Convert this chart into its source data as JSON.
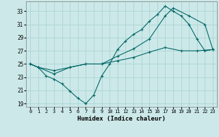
{
  "xlabel": "Humidex (Indice chaleur)",
  "xlim": [
    -0.5,
    23.5
  ],
  "ylim": [
    18.5,
    34.5
  ],
  "yticks": [
    19,
    21,
    23,
    25,
    27,
    29,
    31,
    33
  ],
  "xticks": [
    0,
    1,
    2,
    3,
    4,
    5,
    6,
    7,
    8,
    9,
    10,
    11,
    12,
    13,
    14,
    15,
    16,
    17,
    18,
    19,
    20,
    21,
    22,
    23
  ],
  "bg_color": "#cce8e8",
  "grid_color": "#aad4d4",
  "line_color": "#006666",
  "line1_x": [
    0,
    1,
    2,
    3,
    4,
    5,
    6,
    7,
    8,
    9,
    10,
    11,
    12,
    13,
    14,
    15,
    16,
    17,
    18,
    19,
    20,
    21,
    22,
    23
  ],
  "line1_y": [
    25.0,
    24.5,
    23.2,
    22.7,
    22.0,
    20.9,
    19.8,
    19.0,
    20.3,
    23.2,
    25.0,
    27.2,
    28.5,
    29.5,
    30.2,
    31.5,
    32.5,
    33.8,
    33.0,
    32.3,
    31.0,
    28.8,
    27.0,
    27.2
  ],
  "line2_x": [
    0,
    1,
    3,
    5,
    7,
    9,
    11,
    13,
    15,
    17,
    18,
    20,
    22,
    23
  ],
  "line2_y": [
    25.0,
    24.5,
    23.5,
    24.5,
    25.0,
    25.0,
    26.2,
    27.3,
    28.8,
    32.3,
    33.5,
    32.3,
    31.0,
    27.2
  ],
  "line3_x": [
    0,
    1,
    3,
    5,
    7,
    9,
    11,
    13,
    15,
    17,
    19,
    21,
    23
  ],
  "line3_y": [
    25.0,
    24.5,
    24.0,
    24.5,
    25.0,
    25.0,
    25.5,
    26.0,
    26.8,
    27.5,
    27.0,
    27.0,
    27.2
  ]
}
